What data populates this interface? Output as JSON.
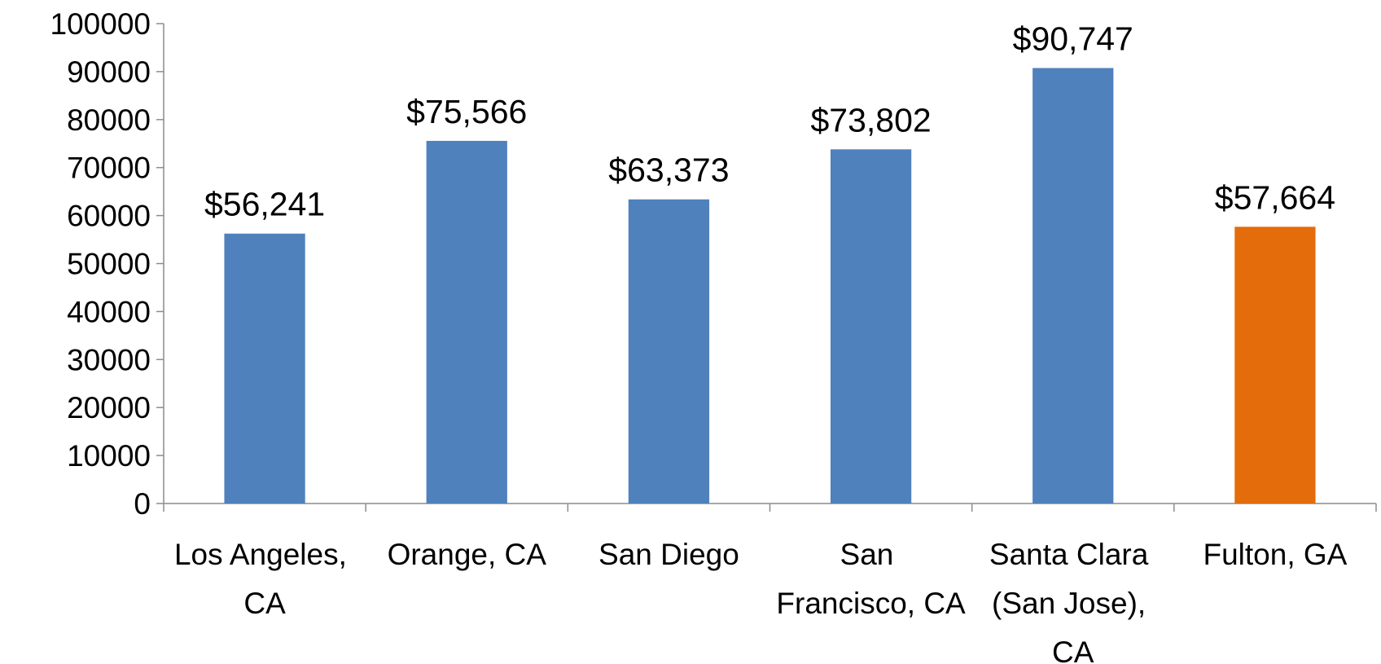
{
  "chart_data": {
    "type": "bar",
    "categories": [
      "Los Angeles, CA",
      "Orange, CA",
      "San Diego",
      "San Francisco, CA",
      "Santa Clara (San Jose), CA",
      "Fulton, GA"
    ],
    "values": [
      56241,
      75566,
      63373,
      73802,
      90747,
      57664
    ],
    "value_labels": [
      "$56,241",
      "$75,566",
      "$63,373",
      "$73,802",
      "$90,747",
      "$57,664"
    ],
    "colors": [
      "#4f81bd",
      "#4f81bd",
      "#4f81bd",
      "#4f81bd",
      "#4f81bd",
      "#e46c0a"
    ],
    "ylim": [
      0,
      100000
    ],
    "yticks": [
      0,
      10000,
      20000,
      30000,
      40000,
      50000,
      60000,
      70000,
      80000,
      90000,
      100000
    ],
    "grid": false
  }
}
